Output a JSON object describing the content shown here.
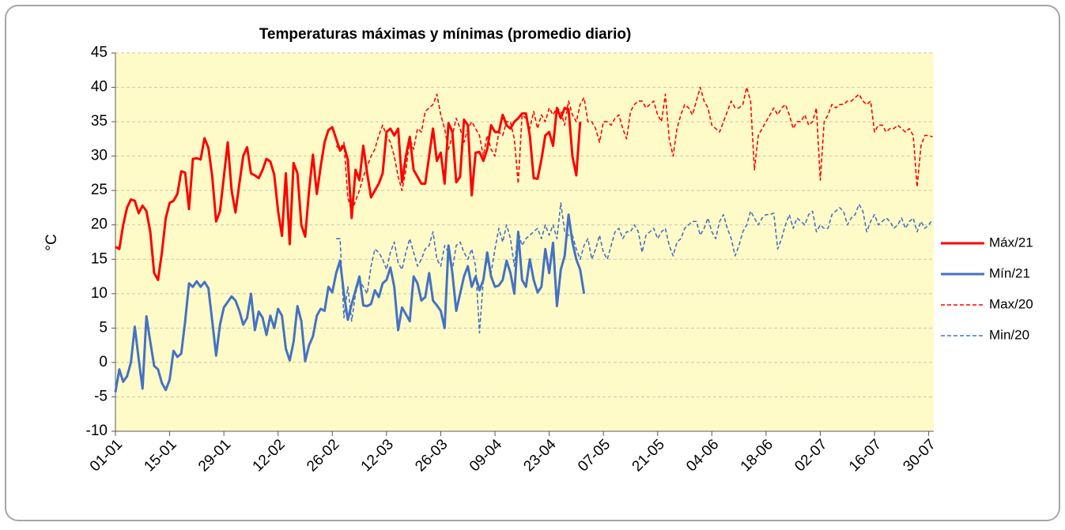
{
  "chart_data": {
    "type": "line",
    "title": "Temperaturas máximas y mínimas (promedio diario)",
    "y_label": "°C",
    "ylim": [
      -10,
      45
    ],
    "yticks": [
      -10,
      -5,
      0,
      5,
      10,
      15,
      20,
      25,
      30,
      35,
      40,
      45
    ],
    "grid": true,
    "legend": "right",
    "categories": [
      "01-01",
      null,
      null,
      null,
      null,
      null,
      null,
      null,
      null,
      null,
      null,
      null,
      null,
      null,
      "15-01",
      null,
      null,
      null,
      null,
      null,
      null,
      null,
      null,
      null,
      null,
      null,
      null,
      null,
      "29-01",
      null,
      null,
      null,
      null,
      null,
      null,
      null,
      null,
      null,
      null,
      null,
      null,
      null,
      "12-02",
      null,
      null,
      null,
      null,
      null,
      null,
      null,
      null,
      null,
      null,
      null,
      null,
      null,
      "26-02",
      null,
      null,
      null,
      null,
      null,
      null,
      null,
      null,
      null,
      null,
      null,
      null,
      null,
      "12-03",
      null,
      null,
      null,
      null,
      null,
      null,
      null,
      null,
      null,
      null,
      null,
      null,
      null,
      "26-03",
      null,
      null,
      null,
      null,
      null,
      null,
      null,
      null,
      null,
      null,
      null,
      null,
      null,
      "09-04",
      null,
      null,
      null,
      null,
      null,
      null,
      null,
      null,
      null,
      null,
      null,
      null,
      null,
      "23-04",
      null,
      null,
      null,
      null,
      null,
      null,
      null,
      null,
      null,
      null,
      null,
      null,
      null,
      "07-05",
      null,
      null,
      null,
      null,
      null,
      null,
      null,
      null,
      null,
      null,
      null,
      null,
      null,
      "21-05",
      null,
      null,
      null,
      null,
      null,
      null,
      null,
      null,
      null,
      null,
      null,
      null,
      null,
      "04-06",
      null,
      null,
      null,
      null,
      null,
      null,
      null,
      null,
      null,
      null,
      null,
      null,
      null,
      "18-06",
      null,
      null,
      null,
      null,
      null,
      null,
      null,
      null,
      null,
      null,
      null,
      null,
      null,
      "02-07",
      null,
      null,
      null,
      null,
      null,
      null,
      null,
      null,
      null,
      null,
      null,
      null,
      null,
      "16-07",
      null,
      null,
      null,
      null,
      null,
      null,
      null,
      null,
      null,
      null,
      null,
      null,
      null,
      "30-07",
      null
    ],
    "series": [
      {
        "name": "Máx/21",
        "color": "#ff0000",
        "dashed": false,
        "values": [
          16.8,
          16.5,
          20,
          22.5,
          23.7,
          23.5,
          21.7,
          22.8,
          22,
          19,
          13,
          12,
          16,
          21,
          23.2,
          23.5,
          24.5,
          27.8,
          27.6,
          22.3,
          29.6,
          29.7,
          29.5,
          32.6,
          31.2,
          27,
          20.5,
          22,
          27,
          32,
          25,
          21.8,
          26,
          30,
          31.3,
          27.5,
          27.2,
          26.8,
          28,
          29.6,
          29.2,
          27.3,
          22,
          18.4,
          27.5,
          17.2,
          29,
          27.5,
          20,
          18.3,
          25,
          30.2,
          24.5,
          28.5,
          32,
          33.8,
          34.2,
          32.5,
          30.8,
          31.5,
          29.5,
          21,
          28,
          26.5,
          31.5,
          27.5,
          24,
          25,
          26,
          27.5,
          33.5,
          34,
          33,
          34,
          26.2,
          30,
          32.8,
          28,
          27,
          26,
          26,
          30,
          34,
          29.3,
          30.5,
          26,
          34.8,
          33.5,
          26.2,
          27,
          35.3,
          34.5,
          24.3,
          30.5,
          30.6,
          29.3,
          31,
          34.5,
          33.5,
          33.5,
          36,
          34.5,
          34,
          35,
          35.5,
          36.2,
          36.2,
          33,
          26.8,
          26.7,
          29.5,
          33,
          33.5,
          31.5,
          37,
          35.5,
          37,
          36.8,
          30,
          27.2,
          35,
          null,
          null,
          null,
          null,
          null,
          null,
          null,
          null,
          null,
          null,
          null,
          null,
          null,
          null,
          null,
          null,
          null,
          null,
          null,
          null,
          null,
          null,
          null,
          null,
          null,
          null,
          null,
          null,
          null,
          null,
          null,
          null,
          null,
          null,
          null,
          null,
          null,
          null,
          null,
          null,
          null,
          null,
          null,
          null,
          null,
          null,
          null,
          null,
          null,
          null,
          null,
          null,
          null,
          null,
          null,
          null,
          null,
          null,
          null,
          null,
          null,
          null,
          null,
          null,
          null,
          null,
          null,
          null,
          null,
          null,
          null,
          null,
          null,
          null,
          null,
          null,
          null,
          null,
          null,
          null,
          null,
          null,
          null,
          null,
          null,
          null,
          null,
          null,
          null,
          null,
          null
        ]
      },
      {
        "name": "Mín/21",
        "color": "#4472c4",
        "dashed": false,
        "values": [
          -4.3,
          -1,
          -2.8,
          -2,
          0,
          5.2,
          0.5,
          -3.8,
          6.7,
          3,
          -0.5,
          -1,
          -3,
          -4,
          -2.5,
          1.7,
          0.8,
          1.3,
          6,
          11.5,
          11,
          11.8,
          11,
          11.7,
          10.8,
          6,
          1,
          5.5,
          8,
          8.8,
          9.6,
          9,
          7.5,
          5.5,
          6.5,
          10,
          4.7,
          7.4,
          6.5,
          4,
          6.8,
          5,
          7.8,
          6.8,
          2,
          0.3,
          3,
          8.2,
          6,
          0.2,
          2.5,
          3.8,
          6.8,
          7.8,
          7.5,
          11,
          10.2,
          13,
          14.8,
          10,
          6.2,
          8.5,
          10.5,
          12.5,
          8.3,
          8.2,
          8.5,
          10.5,
          9.5,
          11.5,
          12,
          13.8,
          11,
          4.7,
          8,
          7,
          6,
          12.5,
          11.5,
          9,
          9.5,
          13,
          9,
          8.3,
          7.5,
          5,
          17,
          13,
          7.5,
          10,
          12.5,
          14,
          11,
          12.5,
          10.5,
          12,
          16,
          12.5,
          11,
          11.2,
          12,
          14.8,
          13,
          10,
          19,
          12,
          11,
          15,
          12,
          10.2,
          11,
          16.5,
          13,
          17.4,
          8.2,
          13.5,
          15.5,
          21.5,
          17.5,
          15,
          13.5,
          10,
          null,
          null,
          null,
          null,
          null,
          null,
          null,
          null,
          null,
          null,
          null,
          null,
          null,
          null,
          null,
          null,
          null,
          null,
          null,
          null,
          null,
          null,
          null,
          null,
          null,
          null,
          null,
          null,
          null,
          null,
          null,
          null,
          null,
          null,
          null,
          null,
          null,
          null,
          null,
          null,
          null,
          null,
          null,
          null,
          null,
          null,
          null,
          null,
          null,
          null,
          null,
          null,
          null,
          null,
          null,
          null,
          null,
          null,
          null,
          null,
          null,
          null,
          null,
          null,
          null,
          null,
          null,
          null,
          null,
          null,
          null,
          null,
          null,
          null,
          null,
          null,
          null,
          null,
          null,
          null,
          null,
          null,
          null,
          null,
          null,
          null,
          null,
          null,
          null,
          null
        ]
      },
      {
        "name": "Max/20",
        "color": "#ff0000",
        "dashed": true,
        "values": [
          null,
          null,
          null,
          null,
          null,
          null,
          null,
          null,
          null,
          null,
          null,
          null,
          null,
          null,
          null,
          null,
          null,
          null,
          null,
          null,
          null,
          null,
          null,
          null,
          null,
          null,
          null,
          null,
          null,
          null,
          null,
          null,
          null,
          null,
          null,
          null,
          null,
          null,
          null,
          null,
          null,
          null,
          null,
          null,
          null,
          null,
          null,
          null,
          null,
          null,
          null,
          null,
          null,
          null,
          null,
          null,
          null,
          31.5,
          31,
          32,
          24,
          22,
          23.5,
          25,
          27,
          28.5,
          30,
          31,
          33,
          34.5,
          33,
          32,
          30,
          27,
          25,
          28,
          32.5,
          31,
          34,
          33.5,
          36.5,
          37,
          37.5,
          39,
          36,
          34,
          31,
          33,
          35.5,
          34,
          32,
          34,
          35,
          34,
          33,
          30,
          33,
          31,
          30,
          33.5,
          33,
          35,
          35,
          32.5,
          26,
          36,
          35.5,
          34,
          36.5,
          34,
          36,
          35,
          37,
          36,
          37,
          36.5,
          34.5,
          38,
          36,
          35,
          37.5,
          38.5,
          35,
          35,
          34,
          32,
          35,
          35,
          34.5,
          35.5,
          36,
          34,
          32.5,
          36.5,
          37.5,
          38,
          38,
          37,
          37.5,
          38,
          36,
          35,
          39,
          32.5,
          30,
          34,
          36,
          37.5,
          37,
          36,
          38,
          40,
          38,
          37,
          34.5,
          34,
          33.5,
          35,
          36.5,
          38,
          37,
          37,
          37.5,
          40,
          38,
          28,
          33,
          34,
          35,
          36,
          37,
          36,
          37,
          37.5,
          36,
          34,
          35,
          35,
          36,
          34.5,
          35,
          37,
          26.5,
          35,
          36,
          37.5,
          37,
          37.5,
          37.5,
          38,
          38,
          38.5,
          39,
          38,
          37.5,
          38,
          33.5,
          34.5,
          34.5,
          33.5,
          34,
          34,
          34.5,
          34,
          33.5,
          34,
          33,
          25.5,
          31.5,
          33,
          33,
          32.8
        ]
      },
      {
        "name": "Min/20",
        "color": "#4472c4",
        "dashed": true,
        "values": [
          null,
          null,
          null,
          null,
          null,
          null,
          null,
          null,
          null,
          null,
          null,
          null,
          null,
          null,
          null,
          null,
          null,
          null,
          null,
          null,
          null,
          null,
          null,
          null,
          null,
          null,
          null,
          null,
          null,
          null,
          null,
          null,
          null,
          null,
          null,
          null,
          null,
          null,
          null,
          null,
          null,
          null,
          null,
          null,
          null,
          null,
          null,
          null,
          null,
          null,
          null,
          null,
          null,
          null,
          null,
          null,
          null,
          18,
          18,
          6.5,
          11,
          6,
          10,
          12,
          11,
          10,
          14,
          16.5,
          16,
          15,
          13.5,
          16,
          17.5,
          14.5,
          13.5,
          16,
          18,
          16,
          14,
          15,
          16.5,
          17,
          19,
          15,
          14,
          17,
          16,
          13.5,
          17,
          17.5,
          16,
          15,
          16.5,
          14,
          4.3,
          12,
          15,
          13,
          16.5,
          19.5,
          17.5,
          20,
          18,
          14,
          19,
          17,
          18,
          18.5,
          19,
          19.5,
          18,
          20,
          18.5,
          20,
          18,
          23.2,
          19,
          18.5,
          18.5,
          16.5,
          15,
          17,
          18,
          15,
          16.5,
          18.5,
          16,
          15,
          17,
          19,
          19.5,
          18,
          19,
          19,
          20,
          19,
          16,
          18.5,
          19,
          19.5,
          18,
          19,
          19.5,
          17,
          15.5,
          17.5,
          18,
          19.5,
          20,
          20.5,
          20.5,
          18.5,
          19.5,
          21,
          19,
          18,
          20.5,
          21.5,
          19.5,
          18,
          15.5,
          17,
          19,
          20,
          22,
          21,
          20,
          21,
          21.5,
          21.5,
          21.7,
          16.5,
          18,
          20,
          21.5,
          19.5,
          21,
          20.5,
          20,
          21.5,
          22,
          19,
          20,
          19.5,
          19.5,
          21.5,
          22,
          22.5,
          22,
          20,
          21,
          21.5,
          23,
          22,
          19,
          20.5,
          21.5,
          20,
          20.5,
          21,
          20.5,
          19.5,
          20,
          21,
          19.5,
          20.5,
          21,
          19,
          20.5,
          19.5,
          20,
          20.8
        ]
      }
    ]
  }
}
